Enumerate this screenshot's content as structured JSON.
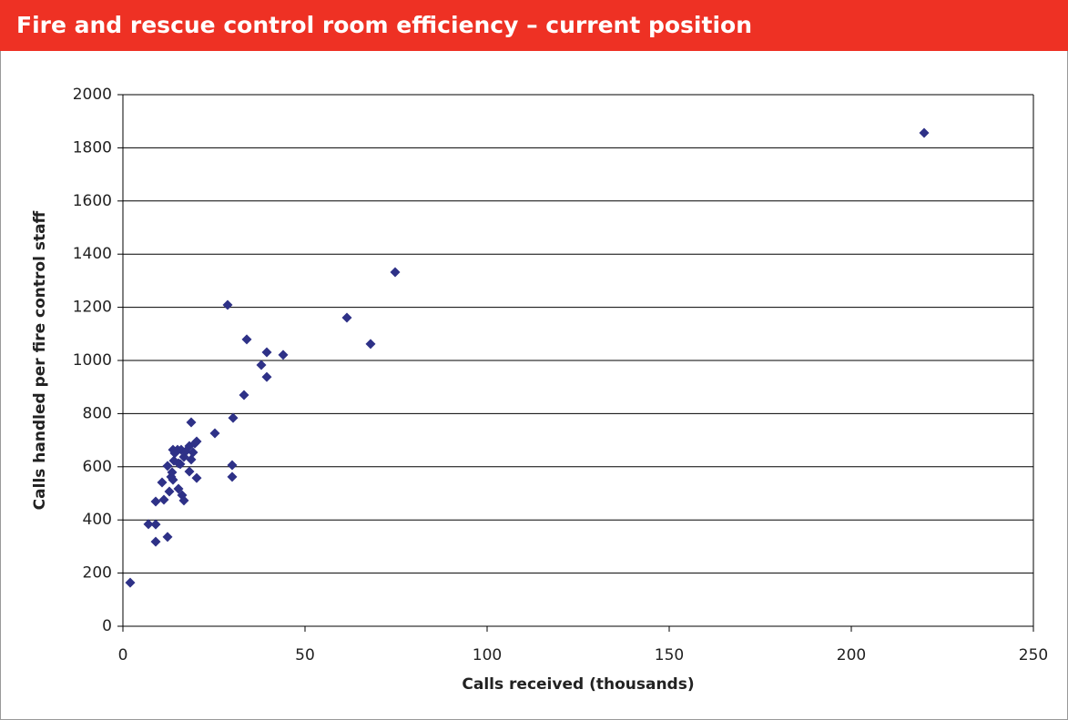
{
  "chart_data": {
    "type": "scatter",
    "title": "Fire and rescue control room efficiency – current position",
    "xlabel": "Calls received (thousands)",
    "ylabel": "Calls handled per fire control staff",
    "color": "#2e3187",
    "x": [
      2,
      7,
      9,
      9,
      9,
      12.25,
      10.75,
      11.25,
      12.25,
      12.75,
      13.5,
      13.25,
      13.75,
      14,
      14.25,
      13.75,
      15.25,
      15,
      16,
      15.75,
      15.25,
      16.25,
      16.75,
      17.25,
      16.75,
      18.25,
      18.25,
      18.75,
      18.75,
      19.25,
      19.75,
      20.25,
      20.25,
      25.25,
      28.75,
      30.25,
      30,
      30,
      33.25,
      34,
      38,
      39.5,
      39.5,
      44,
      61.5,
      68,
      74.75,
      220
    ],
    "values": [
      164,
      384,
      383,
      318,
      469,
      336,
      541,
      476,
      603,
      507,
      579,
      562,
      551,
      623,
      651,
      664,
      613,
      664,
      664,
      610,
      517,
      493,
      473,
      658,
      637,
      678,
      582,
      767,
      627,
      654,
      688,
      695,
      558,
      726,
      1209,
      784,
      606,
      562,
      870,
      1079,
      983,
      938,
      1031,
      1021,
      1161,
      1062,
      1332,
      1856
    ],
    "xlim": [
      0,
      250
    ],
    "xticks": [
      0,
      50,
      100,
      150,
      200,
      250
    ],
    "ylim": [
      0,
      2000
    ],
    "yticks": [
      0,
      200,
      400,
      600,
      800,
      1000,
      1200,
      1400,
      1600,
      1800,
      2000
    ],
    "grid": true
  }
}
